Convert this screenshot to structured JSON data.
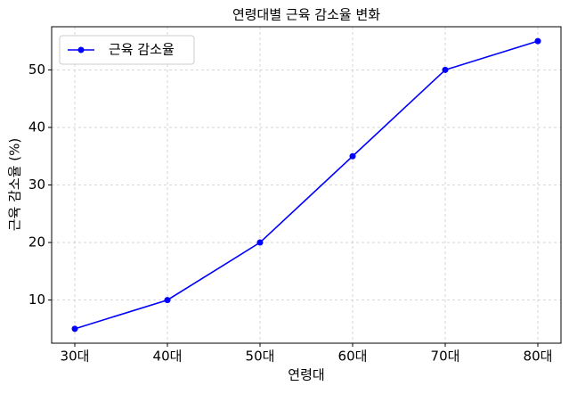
{
  "chart_data": {
    "type": "line",
    "title": "연령대별 근육 감소율 변화",
    "x_label": "연령대",
    "y_label": "근육 감소율 (%)",
    "categories": [
      "30대",
      "40대",
      "50대",
      "60대",
      "70대",
      "80대"
    ],
    "series": [
      {
        "name": "근육 감소율",
        "color": "#0000ff",
        "values": [
          5,
          10,
          20,
          35,
          50,
          55
        ]
      }
    ],
    "ylim": [
      2.5,
      57.5
    ],
    "yticks": [
      10,
      20,
      30,
      40,
      50
    ],
    "grid": true,
    "legend": "upper left"
  }
}
